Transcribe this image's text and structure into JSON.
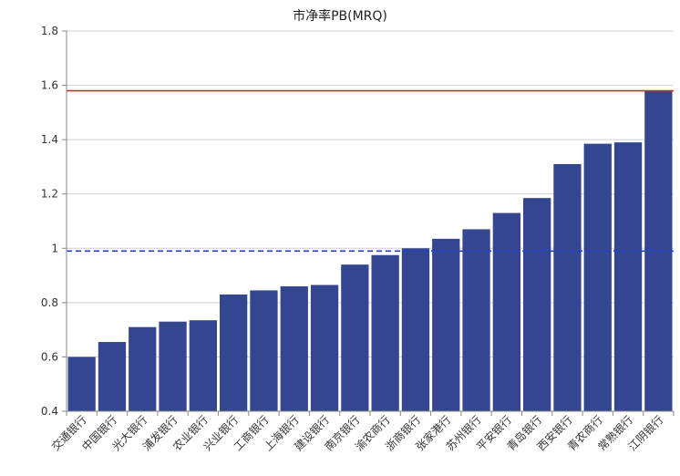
{
  "chart_data": {
    "type": "bar",
    "title": "市净率PB(MRQ)",
    "xlabel": "",
    "ylabel": "",
    "ylim": [
      0.4,
      1.8
    ],
    "yticks": [
      "0.4",
      "0.6",
      "0.8",
      "1",
      "1.2",
      "1.4",
      "1.6",
      "1.8"
    ],
    "grid": true,
    "categories": [
      "交通银行",
      "中国银行",
      "光大银行",
      "浦发银行",
      "农业银行",
      "兴业银行",
      "工商银行",
      "上海银行",
      "建设银行",
      "南京银行",
      "渝农商行",
      "浙商银行",
      "张家港行",
      "苏州银行",
      "平安银行",
      "青岛银行",
      "西安银行",
      "青农商行",
      "常熟银行",
      "江阴银行"
    ],
    "values": [
      0.6,
      0.655,
      0.71,
      0.73,
      0.735,
      0.83,
      0.845,
      0.86,
      0.865,
      0.94,
      0.975,
      1.0,
      1.035,
      1.07,
      1.13,
      1.185,
      1.31,
      1.385,
      1.39,
      1.58
    ],
    "reference_lines": [
      {
        "value": 1.58,
        "color": "#d62a1e",
        "style": "solid"
      },
      {
        "value": 0.99,
        "color": "#1f3fd6",
        "style": "dashed"
      }
    ],
    "colors": {
      "bar": "#34468f",
      "grid": "#d0d0d0",
      "axis": "#888888"
    }
  }
}
